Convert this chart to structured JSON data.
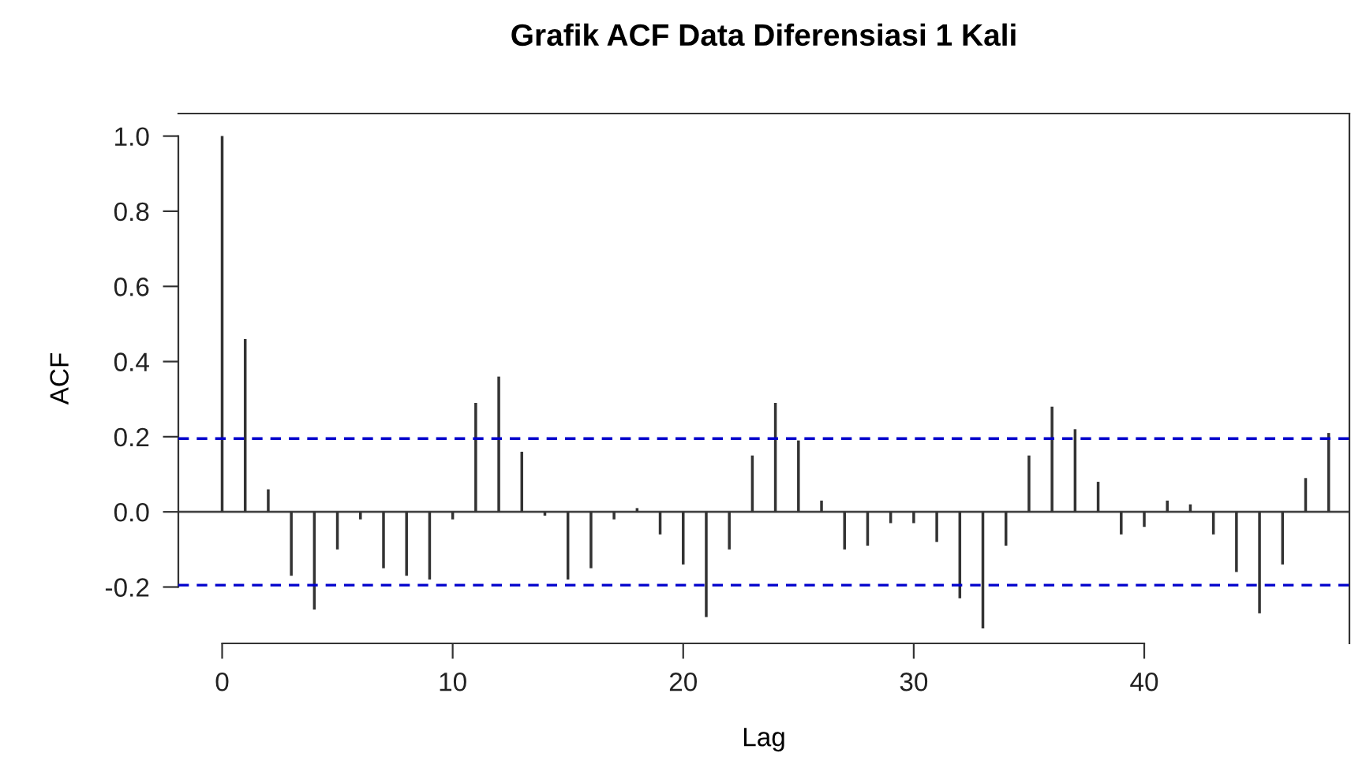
{
  "chart_data": {
    "type": "bar",
    "title": "Grafik ACF Data Diferensiasi 1 Kali",
    "xlabel": "Lag",
    "ylabel": "ACF",
    "x": [
      0,
      1,
      2,
      3,
      4,
      5,
      6,
      7,
      8,
      9,
      10,
      11,
      12,
      13,
      14,
      15,
      16,
      17,
      18,
      19,
      20,
      21,
      22,
      23,
      24,
      25,
      26,
      27,
      28,
      29,
      30,
      31,
      32,
      33,
      34,
      35,
      36,
      37,
      38,
      39,
      40,
      41,
      42,
      43,
      44,
      45,
      46,
      47,
      48
    ],
    "values": [
      1.0,
      0.46,
      0.06,
      -0.17,
      -0.26,
      -0.1,
      -0.02,
      -0.15,
      -0.17,
      -0.18,
      -0.02,
      0.29,
      0.36,
      0.16,
      -0.01,
      -0.18,
      -0.15,
      -0.02,
      0.01,
      -0.06,
      -0.14,
      -0.28,
      -0.1,
      0.15,
      0.29,
      0.19,
      0.03,
      -0.1,
      -0.09,
      -0.03,
      -0.03,
      -0.08,
      -0.23,
      -0.31,
      -0.09,
      0.15,
      0.28,
      0.22,
      0.08,
      -0.06,
      -0.04,
      0.03,
      0.02,
      -0.06,
      -0.16,
      -0.27,
      -0.14,
      0.09,
      0.21
    ],
    "color": "#333333",
    "xlim": [
      -1.9,
      48.9
    ],
    "ylim": [
      -0.35,
      1.06
    ],
    "xticks": [
      0,
      10,
      20,
      30,
      40
    ],
    "yticks": [
      {
        "value": -0.2,
        "label": "-0.2"
      },
      {
        "value": 0.0,
        "label": "0.0"
      },
      {
        "value": 0.2,
        "label": "0.2"
      },
      {
        "value": 0.4,
        "label": "0.4"
      },
      {
        "value": 0.6,
        "label": "0.6"
      },
      {
        "value": 0.8,
        "label": "0.8"
      },
      {
        "value": 1.0,
        "label": "1.0"
      }
    ],
    "ref_lines": [
      {
        "axis": "y",
        "value": 0.195,
        "label": null,
        "color": "#0000cc",
        "line_style": "dashed"
      },
      {
        "axis": "y",
        "value": -0.195,
        "label": null,
        "color": "#0000cc",
        "line_style": "dashed"
      }
    ],
    "grid": false,
    "legend": false
  }
}
